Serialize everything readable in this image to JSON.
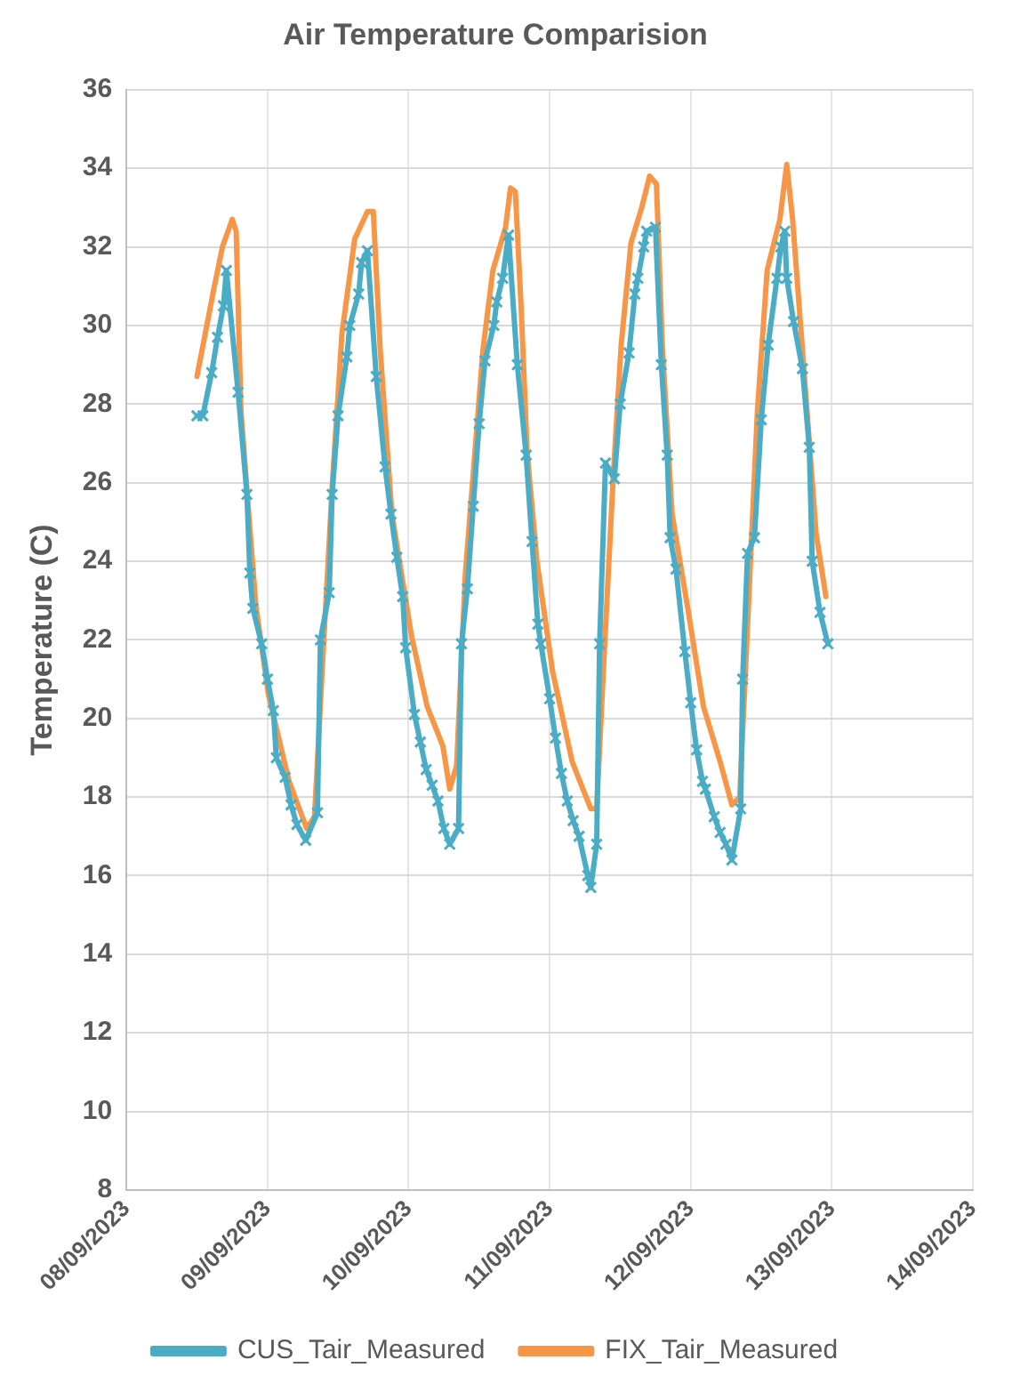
{
  "chart_data": {
    "type": "line",
    "title": "Air Temperature Comparision",
    "ylabel": "Temperature (C)",
    "xlim": [
      "2023-09-08",
      "2023-09-14"
    ],
    "xticks": [
      {
        "value": "2023-09-08",
        "label": "08/09/2023"
      },
      {
        "value": "2023-09-09",
        "label": "09/09/2023"
      },
      {
        "value": "2023-09-10",
        "label": "10/09/2023"
      },
      {
        "value": "2023-09-11",
        "label": "11/09/2023"
      },
      {
        "value": "2023-09-12",
        "label": "12/09/2023"
      },
      {
        "value": "2023-09-13",
        "label": "13/09/2023"
      },
      {
        "value": "2023-09-14",
        "label": "14/09/2023"
      }
    ],
    "ylim": [
      8,
      36
    ],
    "yticks": [
      8,
      10,
      12,
      14,
      16,
      18,
      20,
      22,
      24,
      26,
      28,
      30,
      32,
      34,
      36
    ],
    "grid": true,
    "legend": "bottom",
    "line_style": "solid",
    "series": [
      {
        "name": "CUS_Tair_Measured",
        "color": "#4bacc6",
        "marker": "cross",
        "x": [
          "2023-09-08T12:00",
          "2023-09-08T13:00",
          "2023-09-08T14:30",
          "2023-09-08T15:30",
          "2023-09-08T16:30",
          "2023-09-08T17:00",
          "2023-09-08T19:00",
          "2023-09-08T20:30",
          "2023-09-08T21:00",
          "2023-09-08T21:30",
          "2023-09-08T23:00",
          "2023-09-09T00:00",
          "2023-09-09T01:00",
          "2023-09-09T01:30",
          "2023-09-09T03:00",
          "2023-09-09T04:00",
          "2023-09-09T05:00",
          "2023-09-09T06:30",
          "2023-09-09T08:30",
          "2023-09-09T09:00",
          "2023-09-09T10:30",
          "2023-09-09T11:00",
          "2023-09-09T12:00",
          "2023-09-09T13:30",
          "2023-09-09T14:00",
          "2023-09-09T15:30",
          "2023-09-09T16:00",
          "2023-09-09T17:00",
          "2023-09-09T18:30",
          "2023-09-09T20:00",
          "2023-09-09T21:00",
          "2023-09-09T22:00",
          "2023-09-09T23:00",
          "2023-09-09T23:30",
          "2023-09-10T01:00",
          "2023-09-10T02:00",
          "2023-09-10T03:00",
          "2023-09-10T04:00",
          "2023-09-10T05:00",
          "2023-09-10T06:00",
          "2023-09-10T07:00",
          "2023-09-10T08:30",
          "2023-09-10T09:00",
          "2023-09-10T10:00",
          "2023-09-10T11:00",
          "2023-09-10T12:00",
          "2023-09-10T13:00",
          "2023-09-10T14:30",
          "2023-09-10T15:00",
          "2023-09-10T16:00",
          "2023-09-10T17:00",
          "2023-09-10T18:30",
          "2023-09-10T20:00",
          "2023-09-10T21:00",
          "2023-09-10T22:00",
          "2023-09-10T22:30",
          "2023-09-11T00:00",
          "2023-09-11T01:00",
          "2023-09-11T02:00",
          "2023-09-11T03:00",
          "2023-09-11T04:00",
          "2023-09-11T05:00",
          "2023-09-11T06:30",
          "2023-09-11T07:00",
          "2023-09-11T08:00",
          "2023-09-11T08:30",
          "2023-09-11T09:30",
          "2023-09-11T11:00",
          "2023-09-11T12:00",
          "2023-09-11T13:30",
          "2023-09-11T14:30",
          "2023-09-11T15:00",
          "2023-09-11T16:00",
          "2023-09-11T16:30",
          "2023-09-11T18:00",
          "2023-09-11T19:00",
          "2023-09-11T20:00",
          "2023-09-11T20:30",
          "2023-09-11T21:30",
          "2023-09-11T23:00",
          "2023-09-12T00:00",
          "2023-09-12T01:00",
          "2023-09-12T02:00",
          "2023-09-12T02:30",
          "2023-09-12T04:00",
          "2023-09-12T05:00",
          "2023-09-12T06:00",
          "2023-09-12T07:00",
          "2023-09-12T08:30",
          "2023-09-12T08:50",
          "2023-09-12T09:40",
          "2023-09-12T10:50",
          "2023-09-12T12:00",
          "2023-09-12T13:10",
          "2023-09-12T14:40",
          "2023-09-12T15:20",
          "2023-09-12T16:00",
          "2023-09-12T16:20",
          "2023-09-12T17:30",
          "2023-09-12T19:00",
          "2023-09-12T20:10",
          "2023-09-12T20:40",
          "2023-09-12T22:00",
          "2023-09-12T23:20"
        ],
        "values": [
          27.7,
          27.7,
          28.8,
          29.7,
          30.5,
          31.4,
          28.3,
          25.7,
          23.7,
          22.8,
          21.9,
          21.0,
          20.2,
          19.0,
          18.5,
          17.8,
          17.3,
          16.9,
          17.6,
          22.0,
          23.2,
          25.7,
          27.7,
          29.2,
          30.0,
          30.8,
          31.6,
          31.9,
          28.7,
          26.4,
          25.2,
          24.1,
          23.1,
          21.8,
          20.1,
          19.4,
          18.7,
          18.3,
          17.9,
          17.2,
          16.8,
          17.2,
          21.9,
          23.3,
          25.4,
          27.5,
          29.1,
          30.0,
          30.6,
          31.2,
          32.3,
          29.0,
          26.7,
          24.5,
          22.4,
          21.9,
          20.5,
          19.5,
          18.6,
          17.9,
          17.4,
          17.0,
          16.0,
          15.7,
          16.8,
          21.9,
          26.5,
          26.1,
          28.0,
          29.3,
          30.8,
          31.2,
          32.0,
          32.4,
          32.5,
          29.0,
          26.7,
          24.6,
          23.8,
          21.7,
          20.4,
          19.2,
          18.4,
          18.2,
          17.5,
          17.1,
          16.8,
          16.4,
          17.7,
          21.0,
          24.2,
          24.6,
          27.6,
          29.5,
          31.2,
          32.0,
          32.4,
          31.2,
          30.1,
          28.9,
          26.9,
          24.0,
          22.7,
          21.9
        ]
      },
      {
        "name": "FIX_Tair_Measured",
        "color": "#f79646",
        "marker": "none",
        "x": [
          "2023-09-08T12:00",
          "2023-09-08T14:50",
          "2023-09-08T16:20",
          "2023-09-08T18:00",
          "2023-09-08T18:40",
          "2023-09-08T19:30",
          "2023-09-08T20:40",
          "2023-09-08T22:00",
          "2023-09-09T00:10",
          "2023-09-09T03:40",
          "2023-09-09T06:40",
          "2023-09-09T08:00",
          "2023-09-09T09:20",
          "2023-09-09T11:00",
          "2023-09-09T12:40",
          "2023-09-09T14:50",
          "2023-09-09T17:00",
          "2023-09-09T18:00",
          "2023-09-09T19:10",
          "2023-09-09T21:10",
          "2023-09-10T00:30",
          "2023-09-10T03:10",
          "2023-09-10T05:50",
          "2023-09-10T07:00",
          "2023-09-10T08:10",
          "2023-09-10T09:40",
          "2023-09-10T12:40",
          "2023-09-10T14:20",
          "2023-09-10T16:30",
          "2023-09-10T17:20",
          "2023-09-10T18:10",
          "2023-09-10T19:10",
          "2023-09-10T20:10",
          "2023-09-10T21:50",
          "2023-09-11T00:30",
          "2023-09-11T03:50",
          "2023-09-11T07:00",
          "2023-09-11T08:00",
          "2023-09-11T09:10",
          "2023-09-11T10:50",
          "2023-09-11T12:10",
          "2023-09-11T13:50",
          "2023-09-11T15:40",
          "2023-09-11T17:00",
          "2023-09-11T18:10",
          "2023-09-11T19:10",
          "2023-09-11T20:50",
          "2023-09-11T23:30",
          "2023-09-12T02:10",
          "2023-09-12T05:00",
          "2023-09-12T07:00",
          "2023-09-12T08:20",
          "2023-09-12T09:50",
          "2023-09-12T11:20",
          "2023-09-12T13:00",
          "2023-09-12T15:10",
          "2023-09-12T16:20",
          "2023-09-12T17:20",
          "2023-09-12T19:30",
          "2023-09-12T21:20",
          "2023-09-12T23:00"
        ],
        "values": [
          28.7,
          30.9,
          32.0,
          32.7,
          32.4,
          27.8,
          25.5,
          22.9,
          20.6,
          18.4,
          17.2,
          17.5,
          21.3,
          25.9,
          29.8,
          32.2,
          32.9,
          32.9,
          29.4,
          25.2,
          22.1,
          20.3,
          19.3,
          18.2,
          18.8,
          23.7,
          29.4,
          31.4,
          32.5,
          33.5,
          33.4,
          30.4,
          26.8,
          24.0,
          21.2,
          18.9,
          17.7,
          17.7,
          21.3,
          26.2,
          29.5,
          32.1,
          33.0,
          33.8,
          33.6,
          29.5,
          25.2,
          22.8,
          20.3,
          18.9,
          17.8,
          18.0,
          22.9,
          27.8,
          31.4,
          32.7,
          34.1,
          32.7,
          28.4,
          24.7,
          23.1
        ]
      }
    ]
  }
}
